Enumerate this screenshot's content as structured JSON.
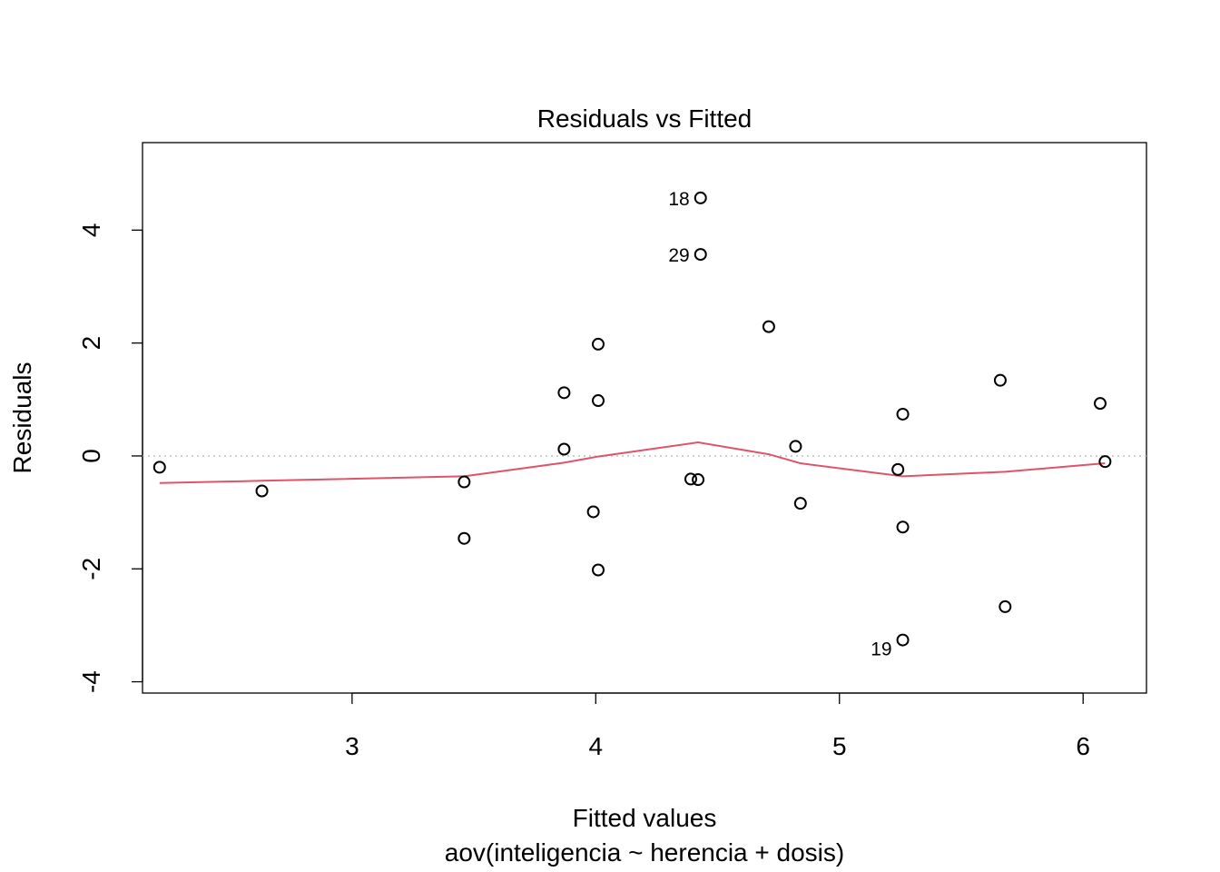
{
  "chart_data": {
    "type": "scatter",
    "title": "Residuals vs Fitted",
    "xlabel": "Fitted values",
    "subtitle": "aov(inteligencia ~ herencia + dosis)",
    "ylabel": "Residuals",
    "xlim": [
      2.14,
      6.26
    ],
    "ylim": [
      -4.2,
      5.55
    ],
    "x_ticks": [
      3,
      4,
      5,
      6
    ],
    "x_tick_labels": [
      "3",
      "4",
      "5",
      "6"
    ],
    "y_ticks": [
      -4,
      -2,
      0,
      2,
      4
    ],
    "y_tick_labels": [
      "-4",
      "-2",
      "0",
      "2",
      "4"
    ],
    "reference_line_y": 0,
    "points": [
      {
        "x": 2.21,
        "y": -0.2
      },
      {
        "x": 2.63,
        "y": -0.62
      },
      {
        "x": 3.46,
        "y": -0.46
      },
      {
        "x": 3.46,
        "y": -1.46
      },
      {
        "x": 3.87,
        "y": 1.12
      },
      {
        "x": 3.87,
        "y": 0.12
      },
      {
        "x": 3.99,
        "y": -0.99
      },
      {
        "x": 4.01,
        "y": 1.98
      },
      {
        "x": 4.01,
        "y": 0.98
      },
      {
        "x": 4.01,
        "y": -2.02
      },
      {
        "x": 4.39,
        "y": -0.41
      },
      {
        "x": 4.42,
        "y": -0.42
      },
      {
        "x": 4.43,
        "y": 4.57,
        "label": "18"
      },
      {
        "x": 4.43,
        "y": 3.57,
        "label": "29"
      },
      {
        "x": 4.71,
        "y": 2.29
      },
      {
        "x": 4.82,
        "y": 0.17
      },
      {
        "x": 4.84,
        "y": -0.84
      },
      {
        "x": 5.24,
        "y": -0.24
      },
      {
        "x": 5.26,
        "y": 0.74
      },
      {
        "x": 5.26,
        "y": -1.26
      },
      {
        "x": 5.26,
        "y": -3.26,
        "label": "19"
      },
      {
        "x": 5.66,
        "y": 1.34
      },
      {
        "x": 5.68,
        "y": -2.67
      },
      {
        "x": 6.07,
        "y": 0.93
      },
      {
        "x": 6.09,
        "y": -0.1
      }
    ],
    "smooth_line": [
      [
        2.21,
        -0.48
      ],
      [
        2.63,
        -0.44
      ],
      [
        3.46,
        -0.36
      ],
      [
        3.87,
        -0.12
      ],
      [
        4.01,
        -0.01
      ],
      [
        4.42,
        0.24
      ],
      [
        4.71,
        0.03
      ],
      [
        4.84,
        -0.13
      ],
      [
        5.26,
        -0.36
      ],
      [
        5.68,
        -0.28
      ],
      [
        6.09,
        -0.13
      ]
    ],
    "colors": {
      "points": "#000000",
      "smooth_line": "#DF536B",
      "reference_line": "#BEBEBE"
    }
  }
}
